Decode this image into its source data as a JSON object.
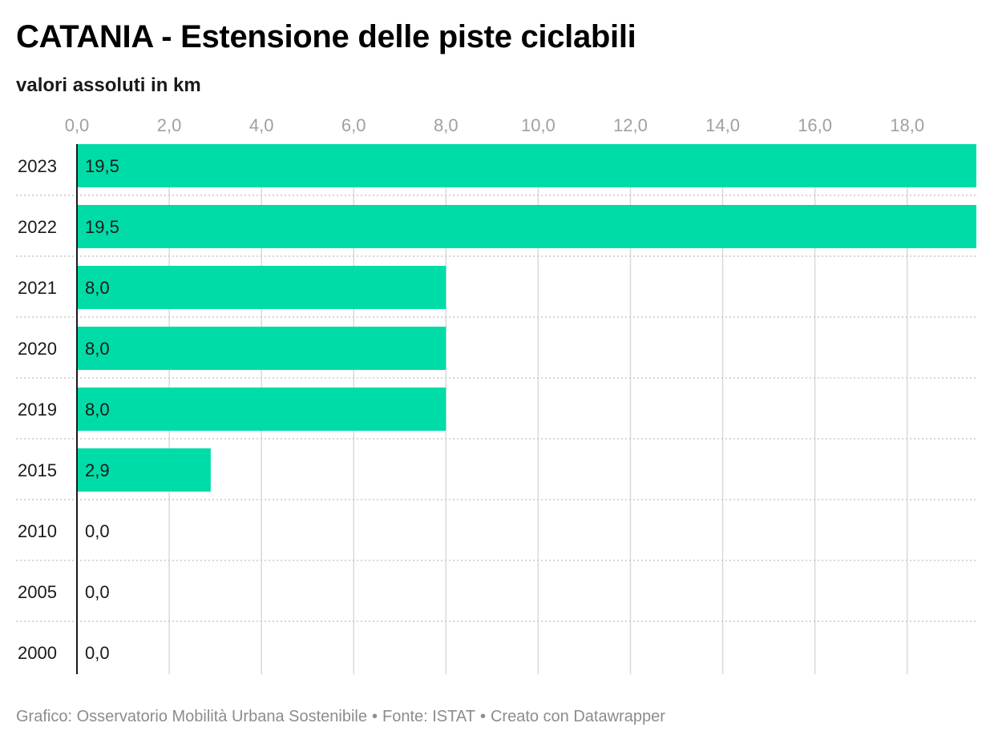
{
  "header": {
    "title": "CATANIA - Estensione delle piste ciclabili",
    "subtitle": "valori assoluti in km"
  },
  "footer": {
    "grafico": "Grafico: Osservatorio Mobilità Urbana Sostenibile",
    "separator": "•",
    "fonte": "Fonte: ISTAT",
    "creato": "Creato con Datawrapper"
  },
  "colors": {
    "bar": "#00dca8",
    "grid": "#d9d9d9",
    "row_separator": "#c8c8c8",
    "baseline": "#1a1a1a"
  },
  "chart_data": {
    "type": "bar",
    "orientation": "horizontal",
    "title": "CATANIA - Estensione delle piste ciclabili",
    "subtitle": "valori assoluti in km",
    "categories": [
      "2023",
      "2022",
      "2021",
      "2020",
      "2019",
      "2015",
      "2010",
      "2005",
      "2000"
    ],
    "values": [
      19.5,
      19.5,
      8.0,
      8.0,
      8.0,
      2.9,
      0.0,
      0.0,
      0.0
    ],
    "value_labels": [
      "19,5",
      "19,5",
      "8,0",
      "8,0",
      "8,0",
      "2,9",
      "0,0",
      "0,0",
      "0,0"
    ],
    "xticks": [
      0,
      2,
      4,
      6,
      8,
      10,
      12,
      14,
      16,
      18
    ],
    "xtick_labels": [
      "0,0",
      "2,0",
      "4,0",
      "6,0",
      "8,0",
      "10,0",
      "12,0",
      "14,0",
      "16,0",
      "18,0"
    ],
    "xlim": [
      0,
      19.5
    ],
    "xaxis_position": "top",
    "grid": true,
    "legend": "none"
  }
}
